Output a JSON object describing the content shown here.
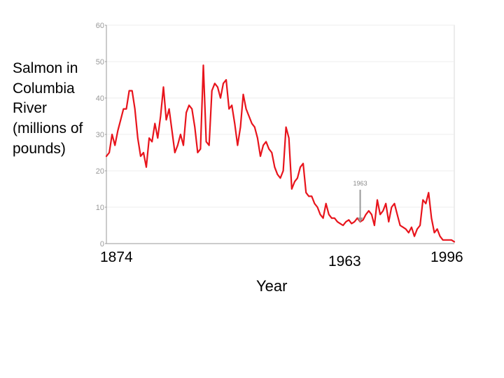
{
  "chart_data": {
    "type": "line",
    "ylabel": "Salmon in Columbia River (millions of pounds)",
    "xlabel": "Year",
    "xlim": [
      1874,
      1996
    ],
    "ylim": [
      0,
      60
    ],
    "yticks": [
      0,
      10,
      20,
      30,
      40,
      50,
      60
    ],
    "xtick_labels": [
      "1874",
      "1963",
      "1996"
    ],
    "grid": true,
    "annotation": {
      "label": "1963",
      "x": 1963,
      "y": 6
    },
    "line_color": "#e8141c",
    "series": [
      {
        "x": [
          1874,
          1875,
          1876,
          1877,
          1878,
          1879,
          1880,
          1881,
          1882,
          1883,
          1884,
          1885,
          1886,
          1887,
          1888,
          1889,
          1890,
          1891,
          1892,
          1893,
          1894,
          1895,
          1896,
          1897,
          1898,
          1899,
          1900,
          1901,
          1902,
          1903,
          1904,
          1905,
          1906,
          1907,
          1908,
          1909,
          1910,
          1911,
          1912,
          1913,
          1914,
          1915,
          1916,
          1917,
          1918,
          1919,
          1920,
          1921,
          1922,
          1923,
          1924,
          1925,
          1926,
          1927,
          1928,
          1929,
          1930,
          1931,
          1932,
          1933,
          1934,
          1935,
          1936,
          1937,
          1938,
          1939,
          1940,
          1941,
          1942,
          1943,
          1944,
          1945,
          1946,
          1947,
          1948,
          1949,
          1950,
          1951,
          1952,
          1953,
          1954,
          1955,
          1956,
          1957,
          1958,
          1959,
          1960,
          1961,
          1962,
          1963,
          1964,
          1965,
          1966,
          1967,
          1968,
          1969,
          1970,
          1971,
          1972,
          1973,
          1974,
          1975,
          1976,
          1977,
          1978,
          1979,
          1980,
          1981,
          1982,
          1983,
          1984,
          1985,
          1986,
          1987,
          1988,
          1989,
          1990,
          1991,
          1992,
          1993,
          1994,
          1995,
          1996
        ],
        "values": [
          24,
          25,
          30,
          27,
          31,
          34,
          37,
          37,
          42,
          42,
          37,
          29,
          24,
          25,
          21,
          29,
          28,
          33,
          29,
          35,
          43,
          34,
          37,
          31,
          25,
          27,
          30,
          27,
          36,
          38,
          37,
          32,
          25,
          26,
          49,
          28,
          27,
          42,
          44,
          43,
          40,
          44,
          45,
          37,
          38,
          33,
          27,
          32,
          41,
          37,
          35,
          33,
          32,
          29,
          24,
          27,
          28,
          26,
          25,
          21,
          19,
          18,
          20,
          32,
          29,
          15,
          17,
          18,
          21,
          22,
          14,
          13,
          13,
          11,
          10,
          8,
          7,
          11,
          8,
          7,
          7,
          6,
          5.5,
          5,
          6,
          6.5,
          5.5,
          6,
          7,
          6,
          6.5,
          8,
          9,
          8,
          5,
          12,
          8,
          9,
          11,
          6,
          10,
          11,
          8,
          5,
          4.5,
          4,
          3,
          4.5,
          2,
          4,
          5,
          12,
          11,
          14,
          7,
          3,
          4,
          2,
          1,
          1,
          1,
          1,
          0.5
        ]
      }
    ]
  }
}
